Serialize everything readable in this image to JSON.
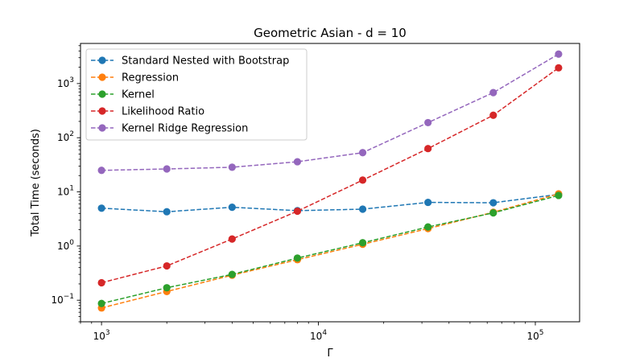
{
  "chart_data": {
    "type": "line",
    "title": "Geometric Asian - d = 10",
    "xlabel": "Γ",
    "ylabel": "Total Time (seconds)",
    "xscale": "log",
    "yscale": "log",
    "xlim": [
      800,
      160000
    ],
    "ylim": [
      0.04,
      5500
    ],
    "x": [
      1000,
      2000,
      4000,
      8000,
      16000,
      32000,
      64000,
      128000
    ],
    "legend_position": "top-left",
    "xticks": [
      {
        "value": 1000,
        "base": "10",
        "exp": "3"
      },
      {
        "value": 10000,
        "base": "10",
        "exp": "4"
      },
      {
        "value": 100000,
        "base": "10",
        "exp": "5"
      }
    ],
    "yticks": [
      {
        "value": 0.1,
        "base": "10",
        "exp": "−1"
      },
      {
        "value": 1,
        "base": "10",
        "exp": "0"
      },
      {
        "value": 10,
        "base": "10",
        "exp": "1"
      },
      {
        "value": 100,
        "base": "10",
        "exp": "2"
      },
      {
        "value": 1000,
        "base": "10",
        "exp": "3"
      }
    ],
    "series": [
      {
        "name": "Standard Nested with Bootstrap",
        "color": "#1f77b4",
        "values": [
          5.0,
          4.3,
          5.2,
          4.5,
          4.8,
          6.4,
          6.3,
          9.0
        ]
      },
      {
        "name": "Regression",
        "color": "#ff7f0e",
        "values": [
          0.072,
          0.145,
          0.29,
          0.56,
          1.08,
          2.1,
          4.2,
          9.2
        ]
      },
      {
        "name": "Kernel",
        "color": "#2ca02c",
        "values": [
          0.087,
          0.17,
          0.3,
          0.6,
          1.15,
          2.25,
          4.1,
          8.6
        ]
      },
      {
        "name": "Likelihood Ratio",
        "color": "#d62728",
        "values": [
          0.21,
          0.43,
          1.35,
          4.4,
          16.5,
          63,
          260,
          1950
        ]
      },
      {
        "name": "Kernel Ridge Regression",
        "color": "#9467bd",
        "values": [
          25,
          26.5,
          28.5,
          36,
          53,
          190,
          680,
          3500
        ]
      }
    ]
  }
}
